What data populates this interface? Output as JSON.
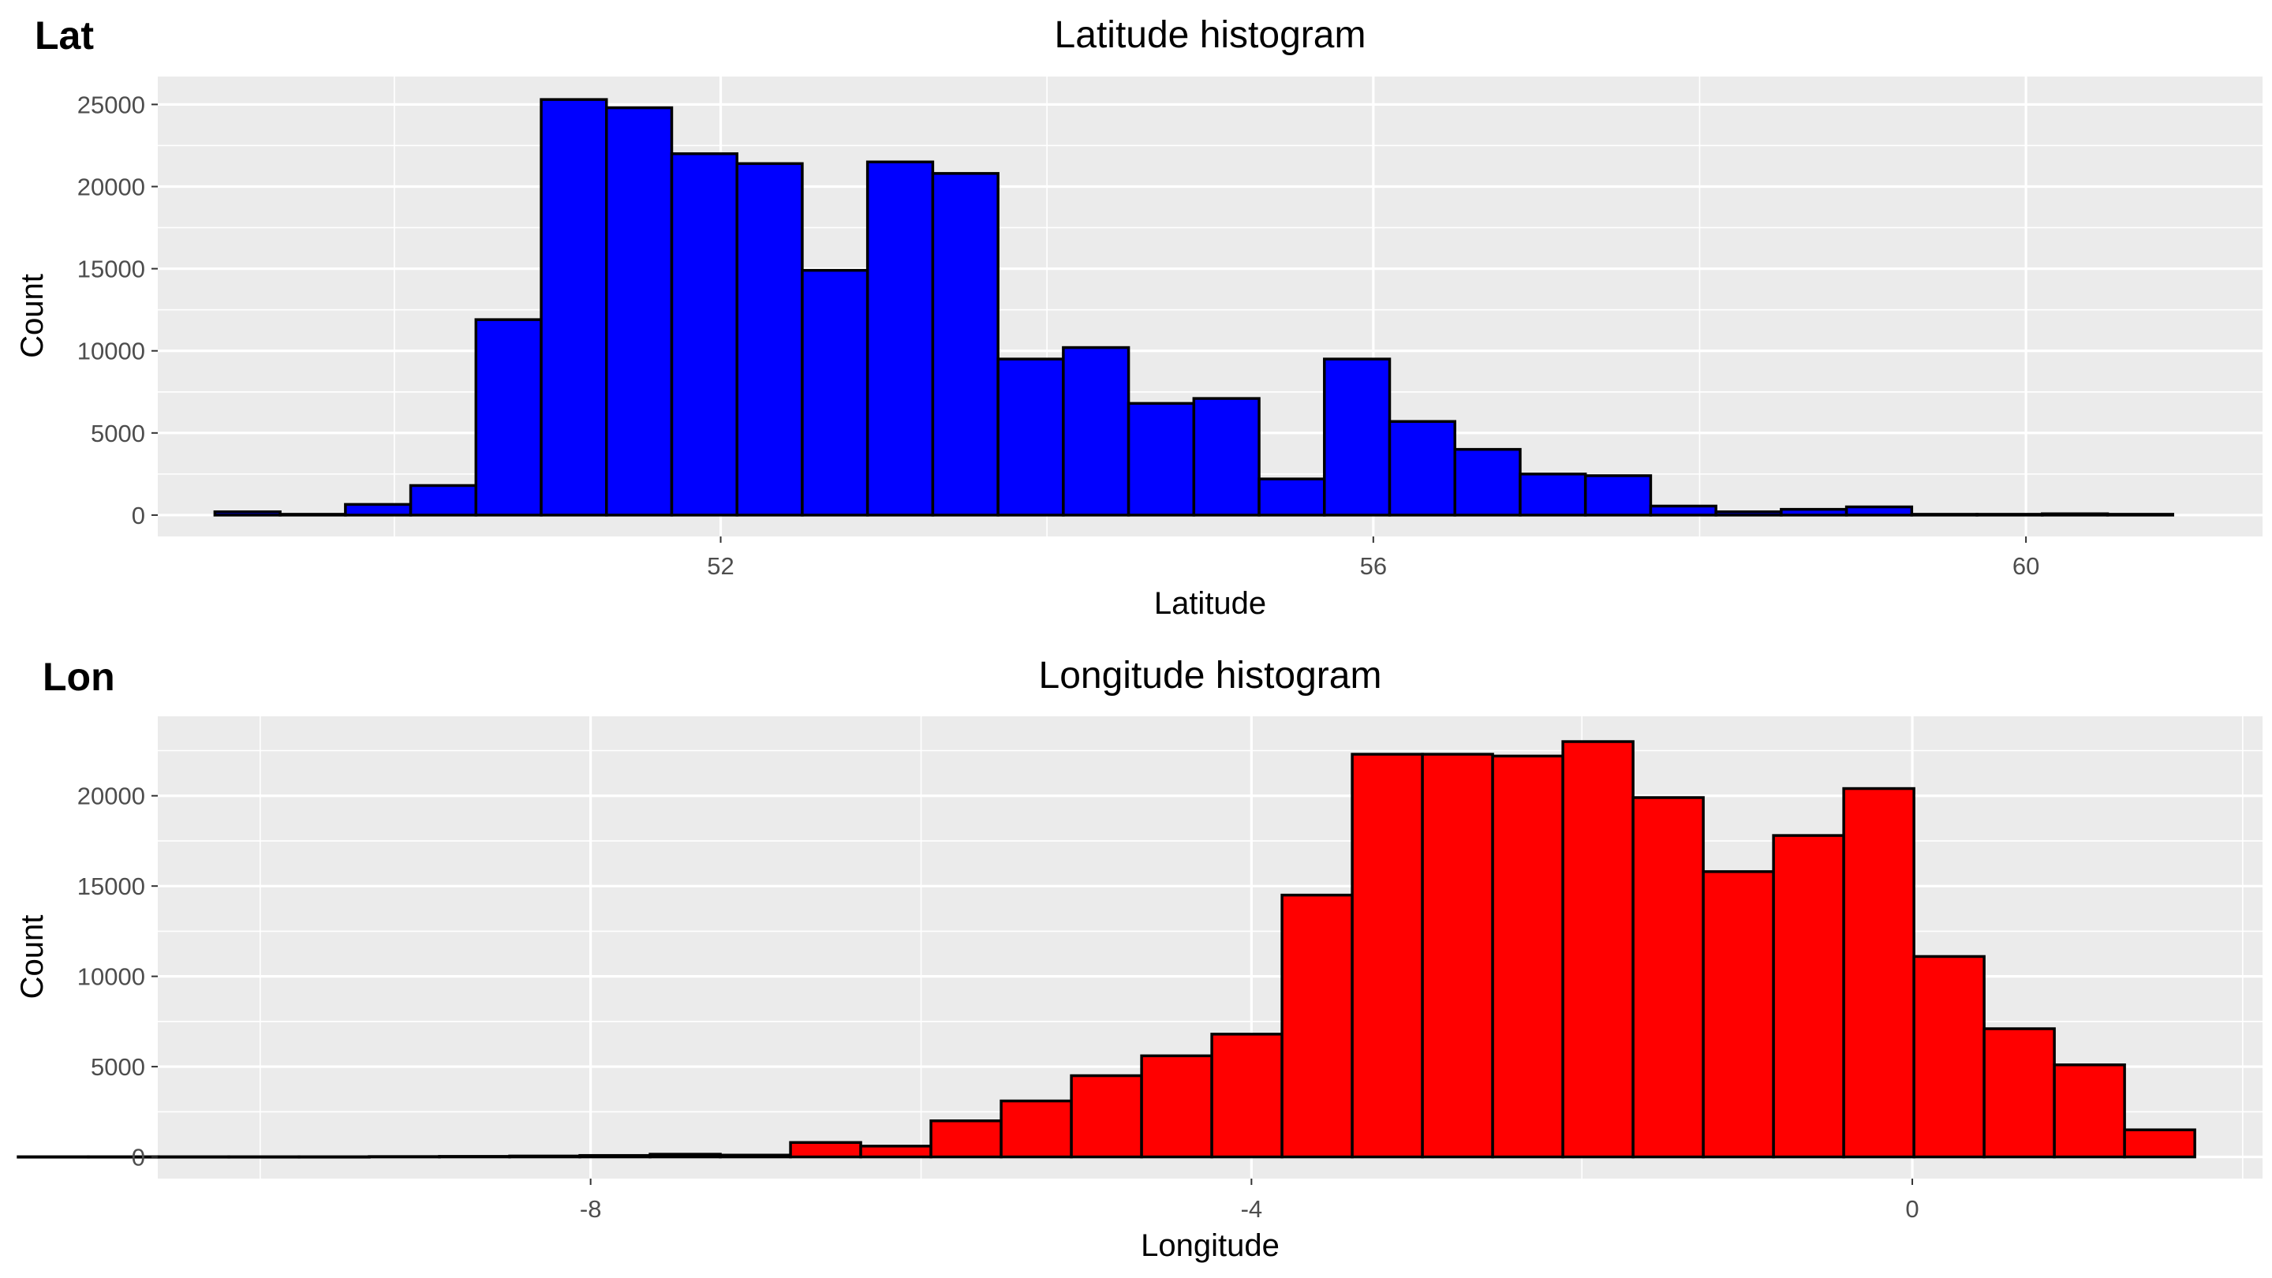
{
  "chart_data": [
    {
      "tag": "Lat",
      "type": "bar",
      "title": "Latitude histogram",
      "xlabel": "Latitude",
      "ylabel": "Count",
      "fill": "#0000ff",
      "outline": "#000000",
      "background": "#ebebeb",
      "grid": true,
      "xlim": [
        48.55,
        61.45
      ],
      "ylim": [
        -1300,
        26700
      ],
      "x_ticks": [
        52,
        56,
        60
      ],
      "y_ticks": [
        0,
        5000,
        10000,
        15000,
        20000,
        25000
      ],
      "bin_start": 48.9,
      "bin_width": 0.4,
      "values": [
        200,
        50,
        650,
        1800,
        11900,
        25300,
        24800,
        22000,
        21400,
        14900,
        21500,
        20800,
        9500,
        10200,
        6800,
        7100,
        2200,
        9500,
        5700,
        4000,
        2500,
        2400,
        550,
        200,
        350,
        500,
        50,
        50,
        80,
        50
      ]
    },
    {
      "tag": "Lon",
      "type": "bar",
      "title": "Longitude histogram",
      "xlabel": "Longitude",
      "ylabel": "Count",
      "fill": "#ff0000",
      "outline": "#000000",
      "background": "#ebebeb",
      "grid": true,
      "xlim": [
        -10.62,
        2.12
      ],
      "ylim": [
        -1200,
        24400
      ],
      "x_ticks": [
        -8,
        -4,
        0
      ],
      "y_ticks": [
        0,
        5000,
        10000,
        15000,
        20000
      ],
      "bin_start": -11.465,
      "bin_width": 0.425,
      "values": [
        10,
        10,
        10,
        10,
        10,
        20,
        30,
        50,
        80,
        150,
        100,
        800,
        600,
        2000,
        3100,
        4500,
        5600,
        6800,
        14500,
        22300,
        22300,
        22200,
        23000,
        19900,
        15800,
        17800,
        20400,
        11100,
        7100,
        5100,
        1500
      ]
    }
  ]
}
